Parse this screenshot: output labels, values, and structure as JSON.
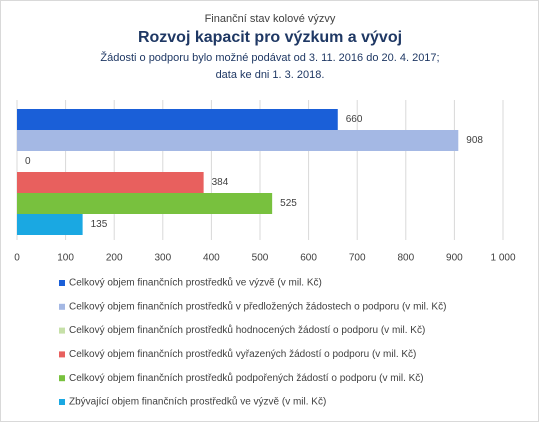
{
  "chart_data": {
    "type": "bar",
    "orientation": "horizontal",
    "supertitle": "Finanční stav kolové výzvy",
    "title": "Rozvoj kapacit pro výzkum a vývoj",
    "subtitle": [
      "Žádosti o podporu bylo možné  podávat od 3. 11. 2016 do 20. 4. 2017;",
      "data ke dni 1. 3. 2018."
    ],
    "series": [
      {
        "name": "Celkový objem finančních prostředků ve výzvě (v mil. Kč)",
        "color": "#1a5fd8",
        "values": [
          660
        ]
      },
      {
        "name": "Celkový objem finančních prostředků v předložených žádostech o podporu (v mil. Kč)",
        "color": "#a4b8e4",
        "values": [
          908
        ]
      },
      {
        "name": "Celkový objem finančních prostředků hodnocených žádostí o podporu (v mil. Kč)",
        "color": "#c6e0a8",
        "values": [
          0
        ]
      },
      {
        "name": "Celkový objem finančních prostředků vyřazených žádostí o podporu (v mil. Kč)",
        "color": "#e8605e",
        "values": [
          384
        ]
      },
      {
        "name": "Celkový objem finančních prostředků podpořených žádostí o podporu (v mil. Kč)",
        "color": "#78c13e",
        "values": [
          525
        ]
      },
      {
        "name": "Zbývající objem finančních prostředků ve výzvě (v mil. Kč)",
        "color": "#1aa8e2",
        "values": [
          135
        ]
      }
    ],
    "xlim": [
      0,
      1000
    ],
    "xticks": [
      0,
      100,
      200,
      300,
      400,
      500,
      600,
      700,
      800,
      900,
      {
        "value": 1000,
        "label": "1 000"
      }
    ],
    "grid": true
  }
}
